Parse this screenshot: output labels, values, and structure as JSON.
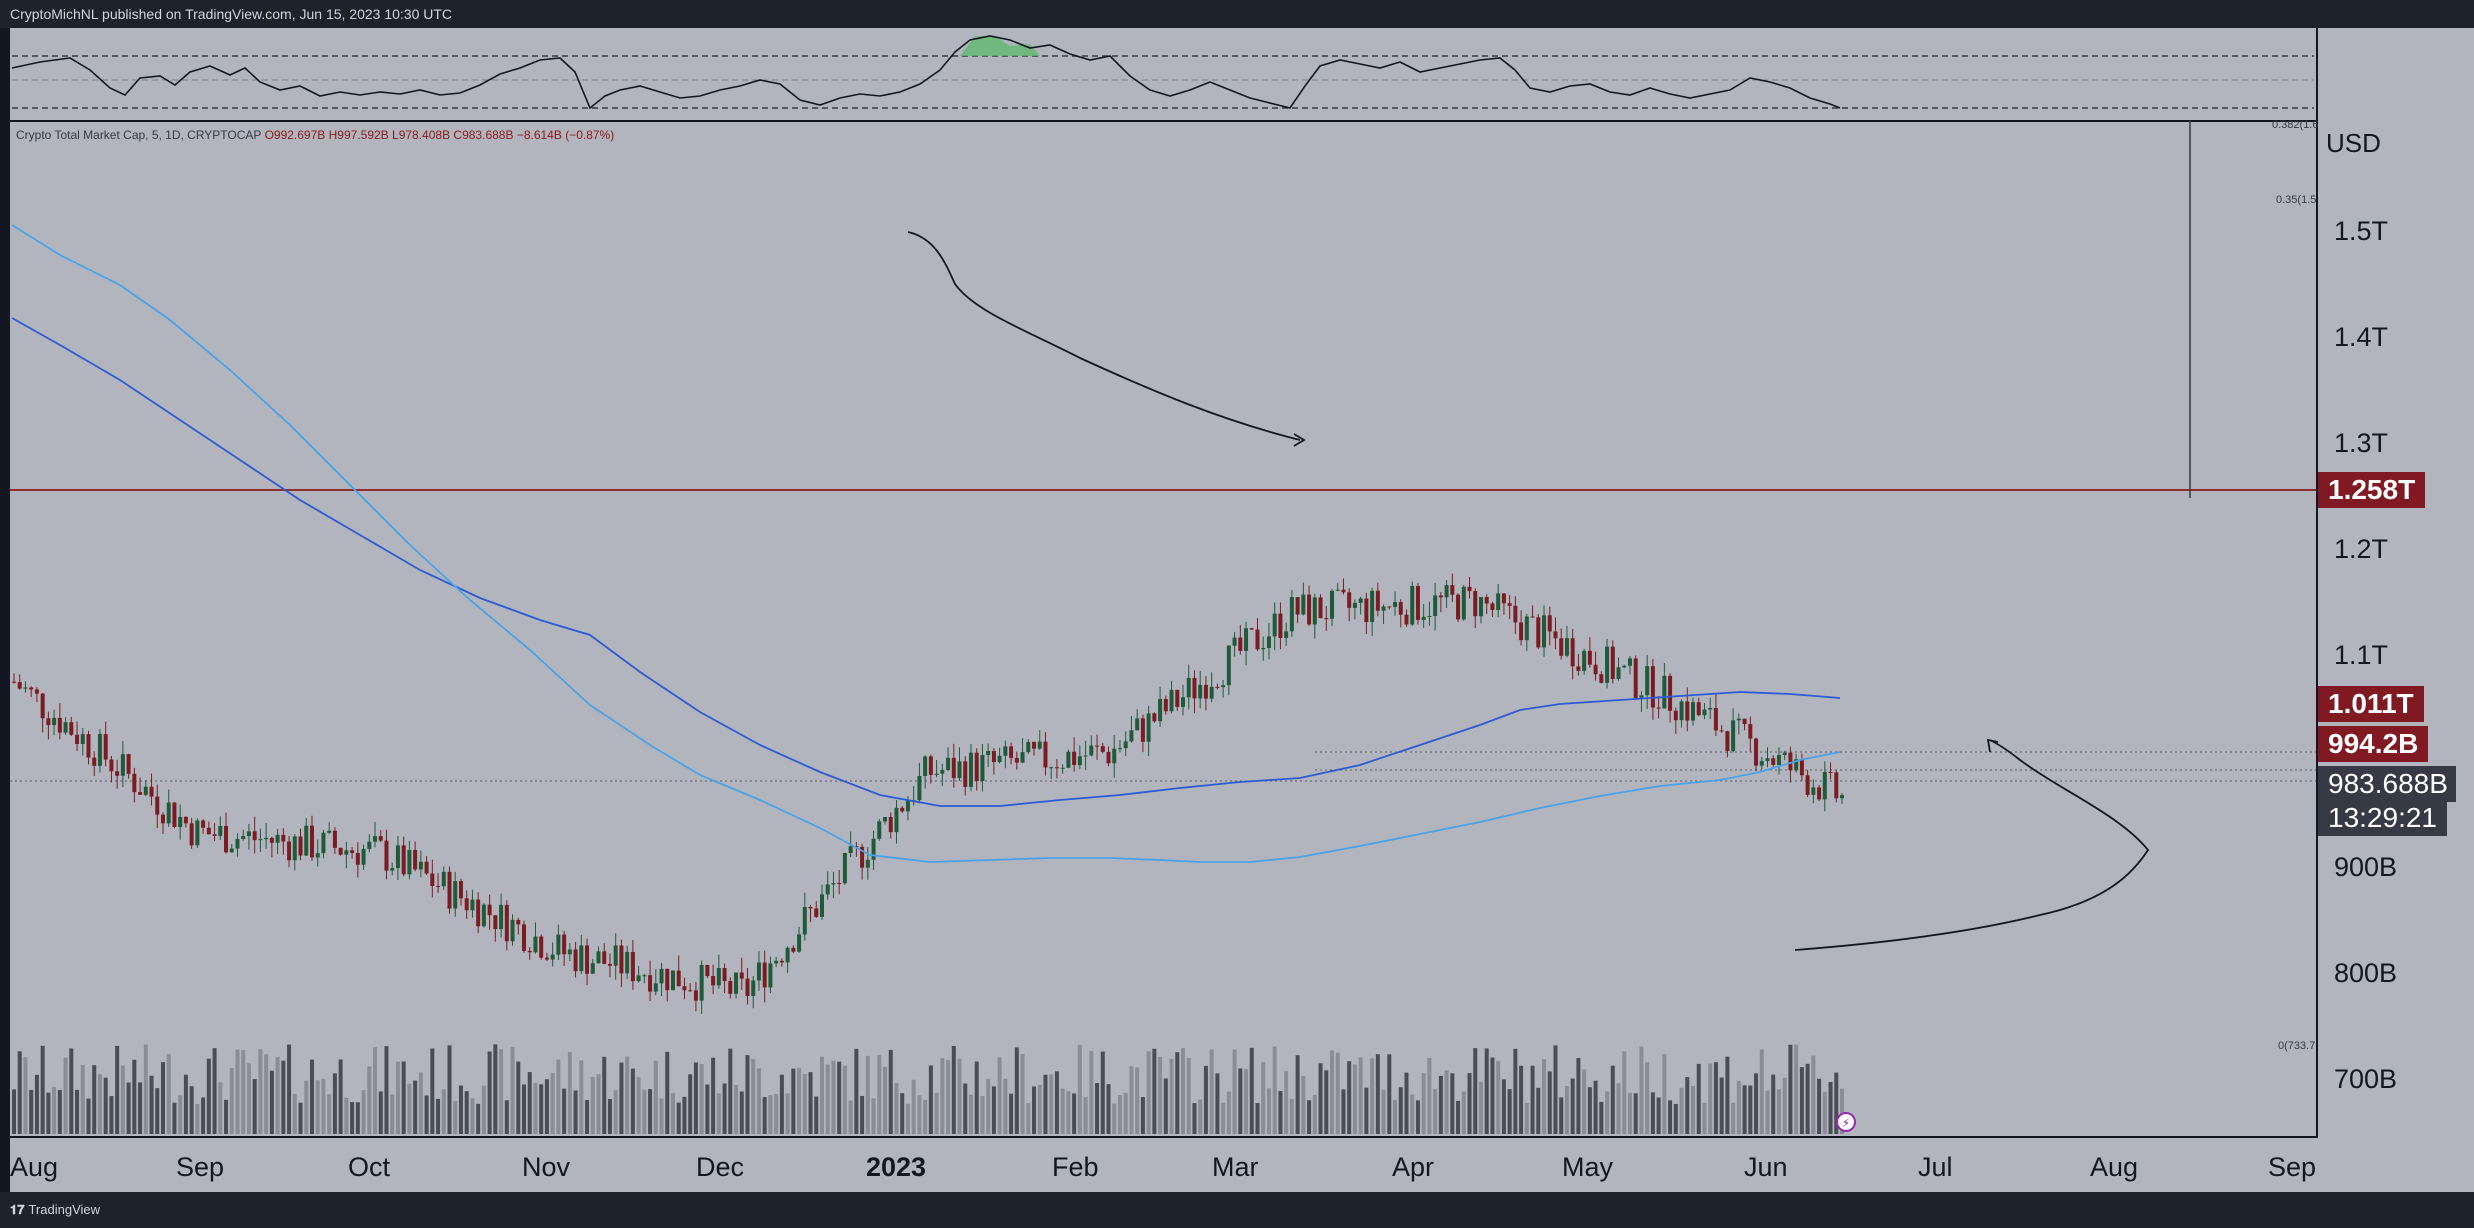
{
  "header": {
    "publisher_text": "CryptoMichNL published on TradingView.com, Jun 15, 2023 10:30 UTC"
  },
  "legend": {
    "symbol": "Crypto Total Market Cap, 5, 1D, CRYPTOCAP",
    "open": "O992.697B",
    "high": "H997.592B",
    "low": "L978.408B",
    "close": "C983.688B",
    "change": "−8.614B (−0.87%)"
  },
  "price_axis": {
    "currency": "USD",
    "ticks": [
      "1.5T",
      "1.4T",
      "1.3T",
      "1.2T",
      "1.1T",
      "900B",
      "800B",
      "700B"
    ],
    "fib_top": "0.382(1.6",
    "fib_mid": "0.35(1.5",
    "fib_bottom": "0(733.7"
  },
  "badges": {
    "resistance": "1.258T",
    "ma_long": "1.011T",
    "ma_short": "994.2B",
    "last_price": "983.688B",
    "countdown": "13:29:21"
  },
  "time_axis": [
    "Aug",
    "Sep",
    "Oct",
    "Nov",
    "Dec",
    "2023",
    "Feb",
    "Mar",
    "Apr",
    "May",
    "Jun",
    "Jul",
    "Aug",
    "Sep"
  ],
  "footer": {
    "brand": "TradingView"
  },
  "colors": {
    "background": "#b2b5be",
    "up_candle": "#1f5a3a",
    "down_candle": "#7a1c22",
    "ma_dark": "#2962ff",
    "ma_light": "#4aa3e8",
    "resistance": "#8b1a1a",
    "badge_red": "#801922"
  },
  "chart_data": {
    "type": "candlestick",
    "symbol": "Crypto Total Market Cap",
    "interval": "1D",
    "ylim": [
      650,
      1650
    ],
    "y_unit": "B USD",
    "resistance_level": 1258,
    "close_approx_by_month": {
      "Aug 2022": 1100,
      "Sep 2022": 950,
      "Oct 2022": 930,
      "Nov 2022": 830,
      "Dec 2022": 790,
      "Jan 2023": 1010,
      "Feb 2023": 1030,
      "Mar 2023": 1170,
      "Apr 2023": 1180,
      "May 2023": 1090,
      "Jun 2023": 983.688
    },
    "moving_averages": [
      {
        "value_last": 1011
      },
      {
        "value_last": 994.2
      }
    ]
  }
}
